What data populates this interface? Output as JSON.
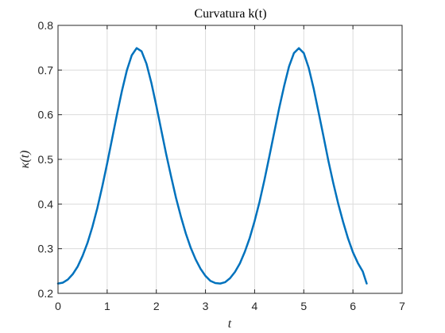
{
  "chart_data": {
    "type": "line",
    "title": "Curvatura k(t)",
    "xlabel": "t",
    "ylabel": "κ(t)",
    "xlim": [
      0,
      7
    ],
    "ylim": [
      0.2,
      0.8
    ],
    "xticks": [
      0,
      1,
      2,
      3,
      4,
      5,
      6,
      7
    ],
    "yticks": [
      0.2,
      0.3,
      0.4,
      0.5,
      0.6,
      0.7,
      0.8
    ],
    "xtick_labels": [
      "0",
      "1",
      "2",
      "3",
      "4",
      "5",
      "6",
      "7"
    ],
    "ytick_labels": [
      "0.2",
      "0.3",
      "0.4",
      "0.5",
      "0.6",
      "0.7",
      "0.8"
    ],
    "grid": true,
    "colors": {
      "series": "#0072BD",
      "axis": "#262626",
      "grid": "#dcdcdc"
    },
    "series": [
      {
        "x": [
          0,
          0.1,
          0.2,
          0.3,
          0.4,
          0.5,
          0.6,
          0.7,
          0.8,
          0.9,
          1.0,
          1.1,
          1.2,
          1.3,
          1.4,
          1.5,
          1.6,
          1.7,
          1.8,
          1.9,
          2.0,
          2.1,
          2.2,
          2.3,
          2.4,
          2.5,
          2.6,
          2.7,
          2.8,
          2.9,
          3.0,
          3.1,
          3.2,
          3.3,
          3.4,
          3.5,
          3.6,
          3.7,
          3.8,
          3.9,
          4.0,
          4.1,
          4.2,
          4.3,
          4.4,
          4.5,
          4.6,
          4.7,
          4.8,
          4.9,
          5.0,
          5.1,
          5.2,
          5.3,
          5.4,
          5.5,
          5.6,
          5.7,
          5.8,
          5.9,
          6.0,
          6.1,
          6.2,
          6.28
        ],
        "values": [
          0.222,
          0.224,
          0.231,
          0.243,
          0.26,
          0.284,
          0.313,
          0.349,
          0.391,
          0.439,
          0.491,
          0.546,
          0.601,
          0.653,
          0.699,
          0.733,
          0.749,
          0.742,
          0.714,
          0.671,
          0.62,
          0.566,
          0.512,
          0.462,
          0.414,
          0.372,
          0.334,
          0.302,
          0.276,
          0.255,
          0.239,
          0.228,
          0.223,
          0.222,
          0.225,
          0.234,
          0.248,
          0.267,
          0.293,
          0.324,
          0.362,
          0.405,
          0.454,
          0.507,
          0.561,
          0.615,
          0.664,
          0.708,
          0.738,
          0.749,
          0.738,
          0.705,
          0.659,
          0.606,
          0.552,
          0.497,
          0.447,
          0.401,
          0.36,
          0.323,
          0.292,
          0.268,
          0.249,
          0.222
        ]
      }
    ]
  }
}
